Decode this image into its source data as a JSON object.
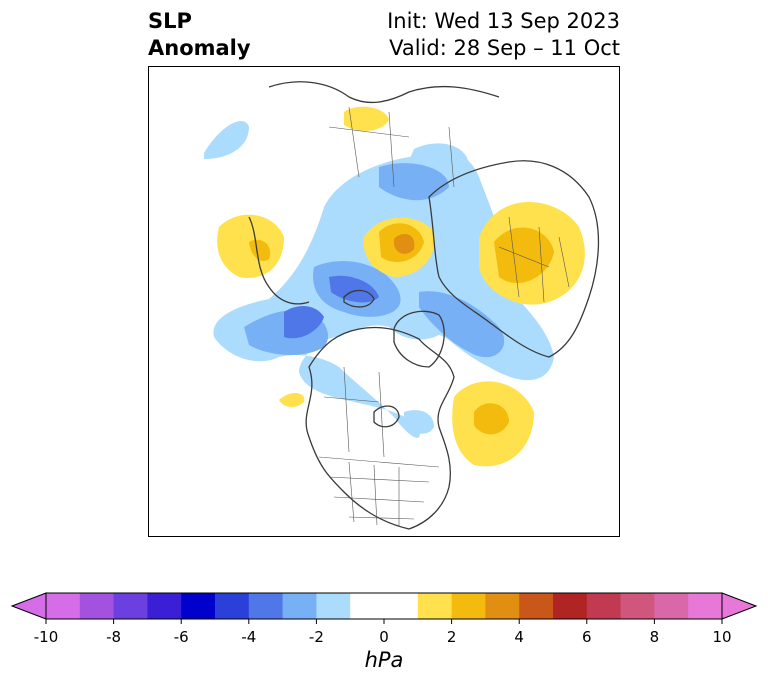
{
  "title": {
    "left_line1": "SLP",
    "left_line2": "Anomaly",
    "init": "Init: Wed 13 Sep 2023",
    "valid": "Valid: 28 Sep – 11 Oct"
  },
  "colorbar": {
    "unit": "hPa",
    "tick_labels": [
      "-10",
      "-8",
      "-6",
      "-4",
      "-2",
      "0",
      "2",
      "4",
      "6",
      "8",
      "10"
    ],
    "bins": [
      {
        "color": "#d56ce8"
      },
      {
        "color": "#a352e0"
      },
      {
        "color": "#6b3fe0"
      },
      {
        "color": "#3a1fd6"
      },
      {
        "color": "#0000cc"
      },
      {
        "color": "#2b3fd9"
      },
      {
        "color": "#4f77e8"
      },
      {
        "color": "#78b0f5"
      },
      {
        "color": "#acdcfd"
      },
      {
        "color": "#ffffff"
      },
      {
        "color": "#ffffff"
      },
      {
        "color": "#ffe14d"
      },
      {
        "color": "#f2bb0d"
      },
      {
        "color": "#e08f12"
      },
      {
        "color": "#c9571a"
      },
      {
        "color": "#b02424"
      },
      {
        "color": "#c23a52"
      },
      {
        "color": "#d0567e"
      },
      {
        "color": "#d968a8"
      },
      {
        "color": "#e878d8"
      }
    ]
  },
  "map": {
    "projection": "north-polar-stereographic",
    "colors": {
      "neg_light": "#acdcfd",
      "neg_mid": "#78b0f5",
      "neg_dark": "#4f77e8",
      "pos_light": "#ffe14d",
      "pos_mid": "#f2bb0d",
      "pos_dark": "#e08f12",
      "land_outline": "#3a3a3a"
    }
  }
}
